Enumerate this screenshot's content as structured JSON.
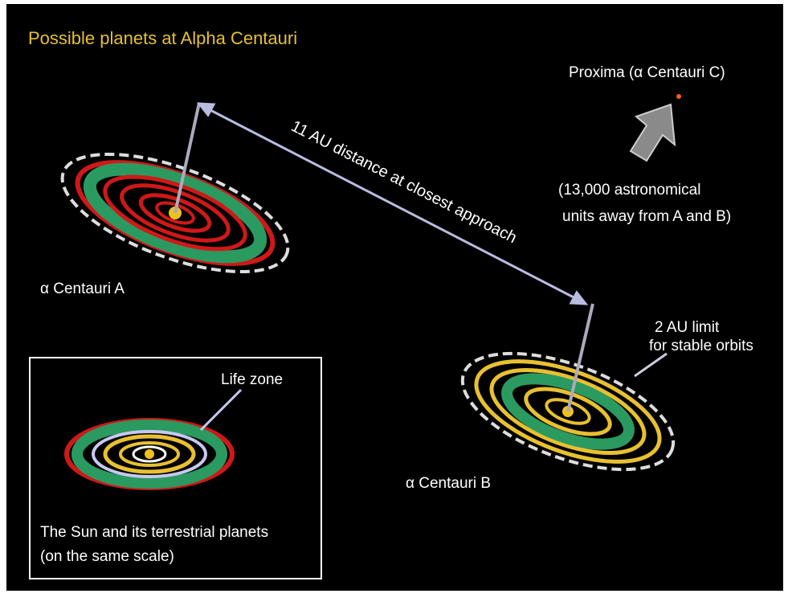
{
  "title": "Possible planets at Alpha Centauri",
  "proxima": {
    "label": "Proxima (α Centauri C)",
    "note_lines": [
      "(13,000 astronomical",
      "units away from A and B)"
    ]
  },
  "distance_label": "11 AU distance at closest approach",
  "star_a": {
    "label": "α Centauri A"
  },
  "star_b": {
    "label": "α Centauri B",
    "limit_lines": [
      "2 AU limit",
      "for stable orbits"
    ]
  },
  "inset": {
    "life_zone": "Life zone",
    "caption_lines": [
      "The Sun and its terrestrial planets",
      "(on the same scale)"
    ]
  }
}
